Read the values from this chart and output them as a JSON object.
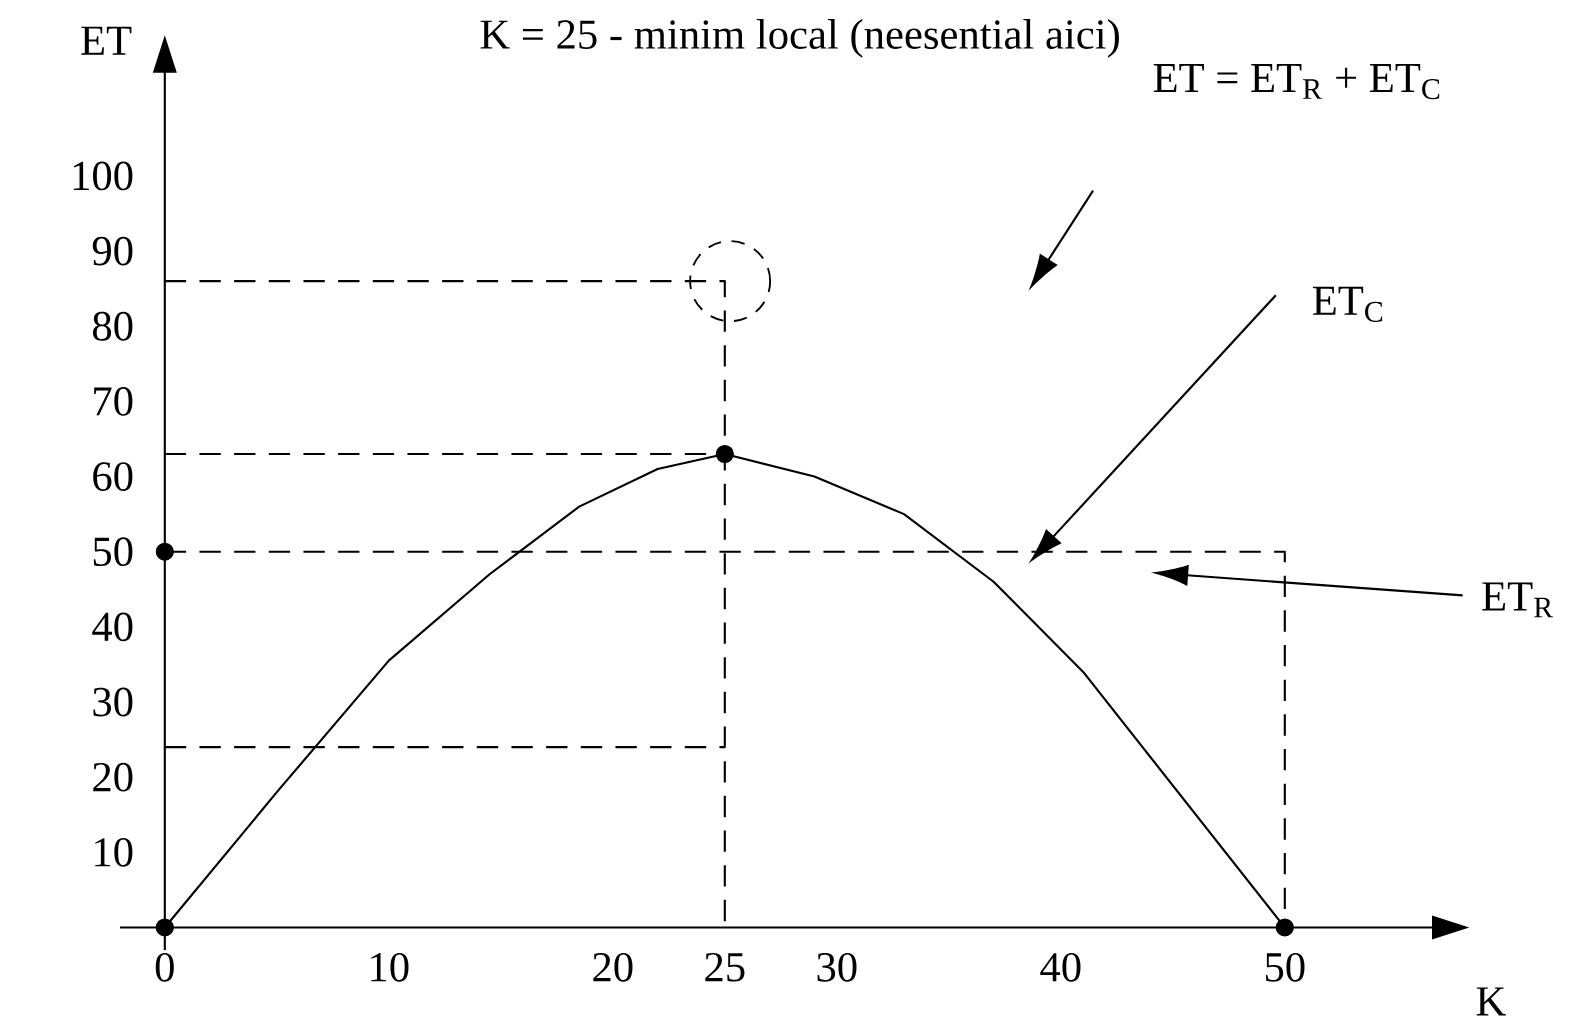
{
  "chart_data": {
    "type": "line",
    "title": "K = 25 - minim local (neesential aici)",
    "xlabel": "K",
    "ylabel": "ET",
    "xlim": [
      -2,
      58
    ],
    "ylim": [
      -3,
      118
    ],
    "xticks": [
      0,
      10,
      20,
      25,
      30,
      40,
      50
    ],
    "yticks": [
      10,
      20,
      30,
      40,
      50,
      60,
      70,
      80,
      90,
      100
    ],
    "series": [
      {
        "x": [
          0,
          5,
          10,
          14.5,
          18.5,
          22,
          25,
          29,
          33,
          37,
          41,
          50
        ],
        "values": [
          0,
          18,
          35.5,
          47,
          56,
          61,
          63,
          60,
          55,
          46,
          34,
          0
        ],
        "color": "#000000",
        "line_style": "solid"
      },
      {
        "x": [
          0,
          50,
          50
        ],
        "values": [
          50,
          50,
          0
        ],
        "color": "#000000",
        "line_style": "dashed"
      },
      {
        "x": [
          0,
          25
        ],
        "values": [
          63,
          63
        ],
        "color": "#000000",
        "line_style": "dashed"
      },
      {
        "x": [
          0,
          25,
          25
        ],
        "values": [
          86,
          86,
          0
        ],
        "color": "#000000",
        "line_style": "dashed"
      },
      {
        "x": [
          0,
          25
        ],
        "values": [
          24,
          24
        ],
        "color": "#000000",
        "line_style": "dashed"
      },
      {
        "type": "scatter",
        "x": [
          0,
          0,
          25,
          50
        ],
        "values": [
          0,
          50,
          63,
          0
        ],
        "color": "#000000",
        "marker": "circle"
      }
    ],
    "annotations": [
      "ET = ET$_{R}$ + ET$_{C}$",
      "ET$_{C}$",
      "ET$_{R}$"
    ]
  }
}
